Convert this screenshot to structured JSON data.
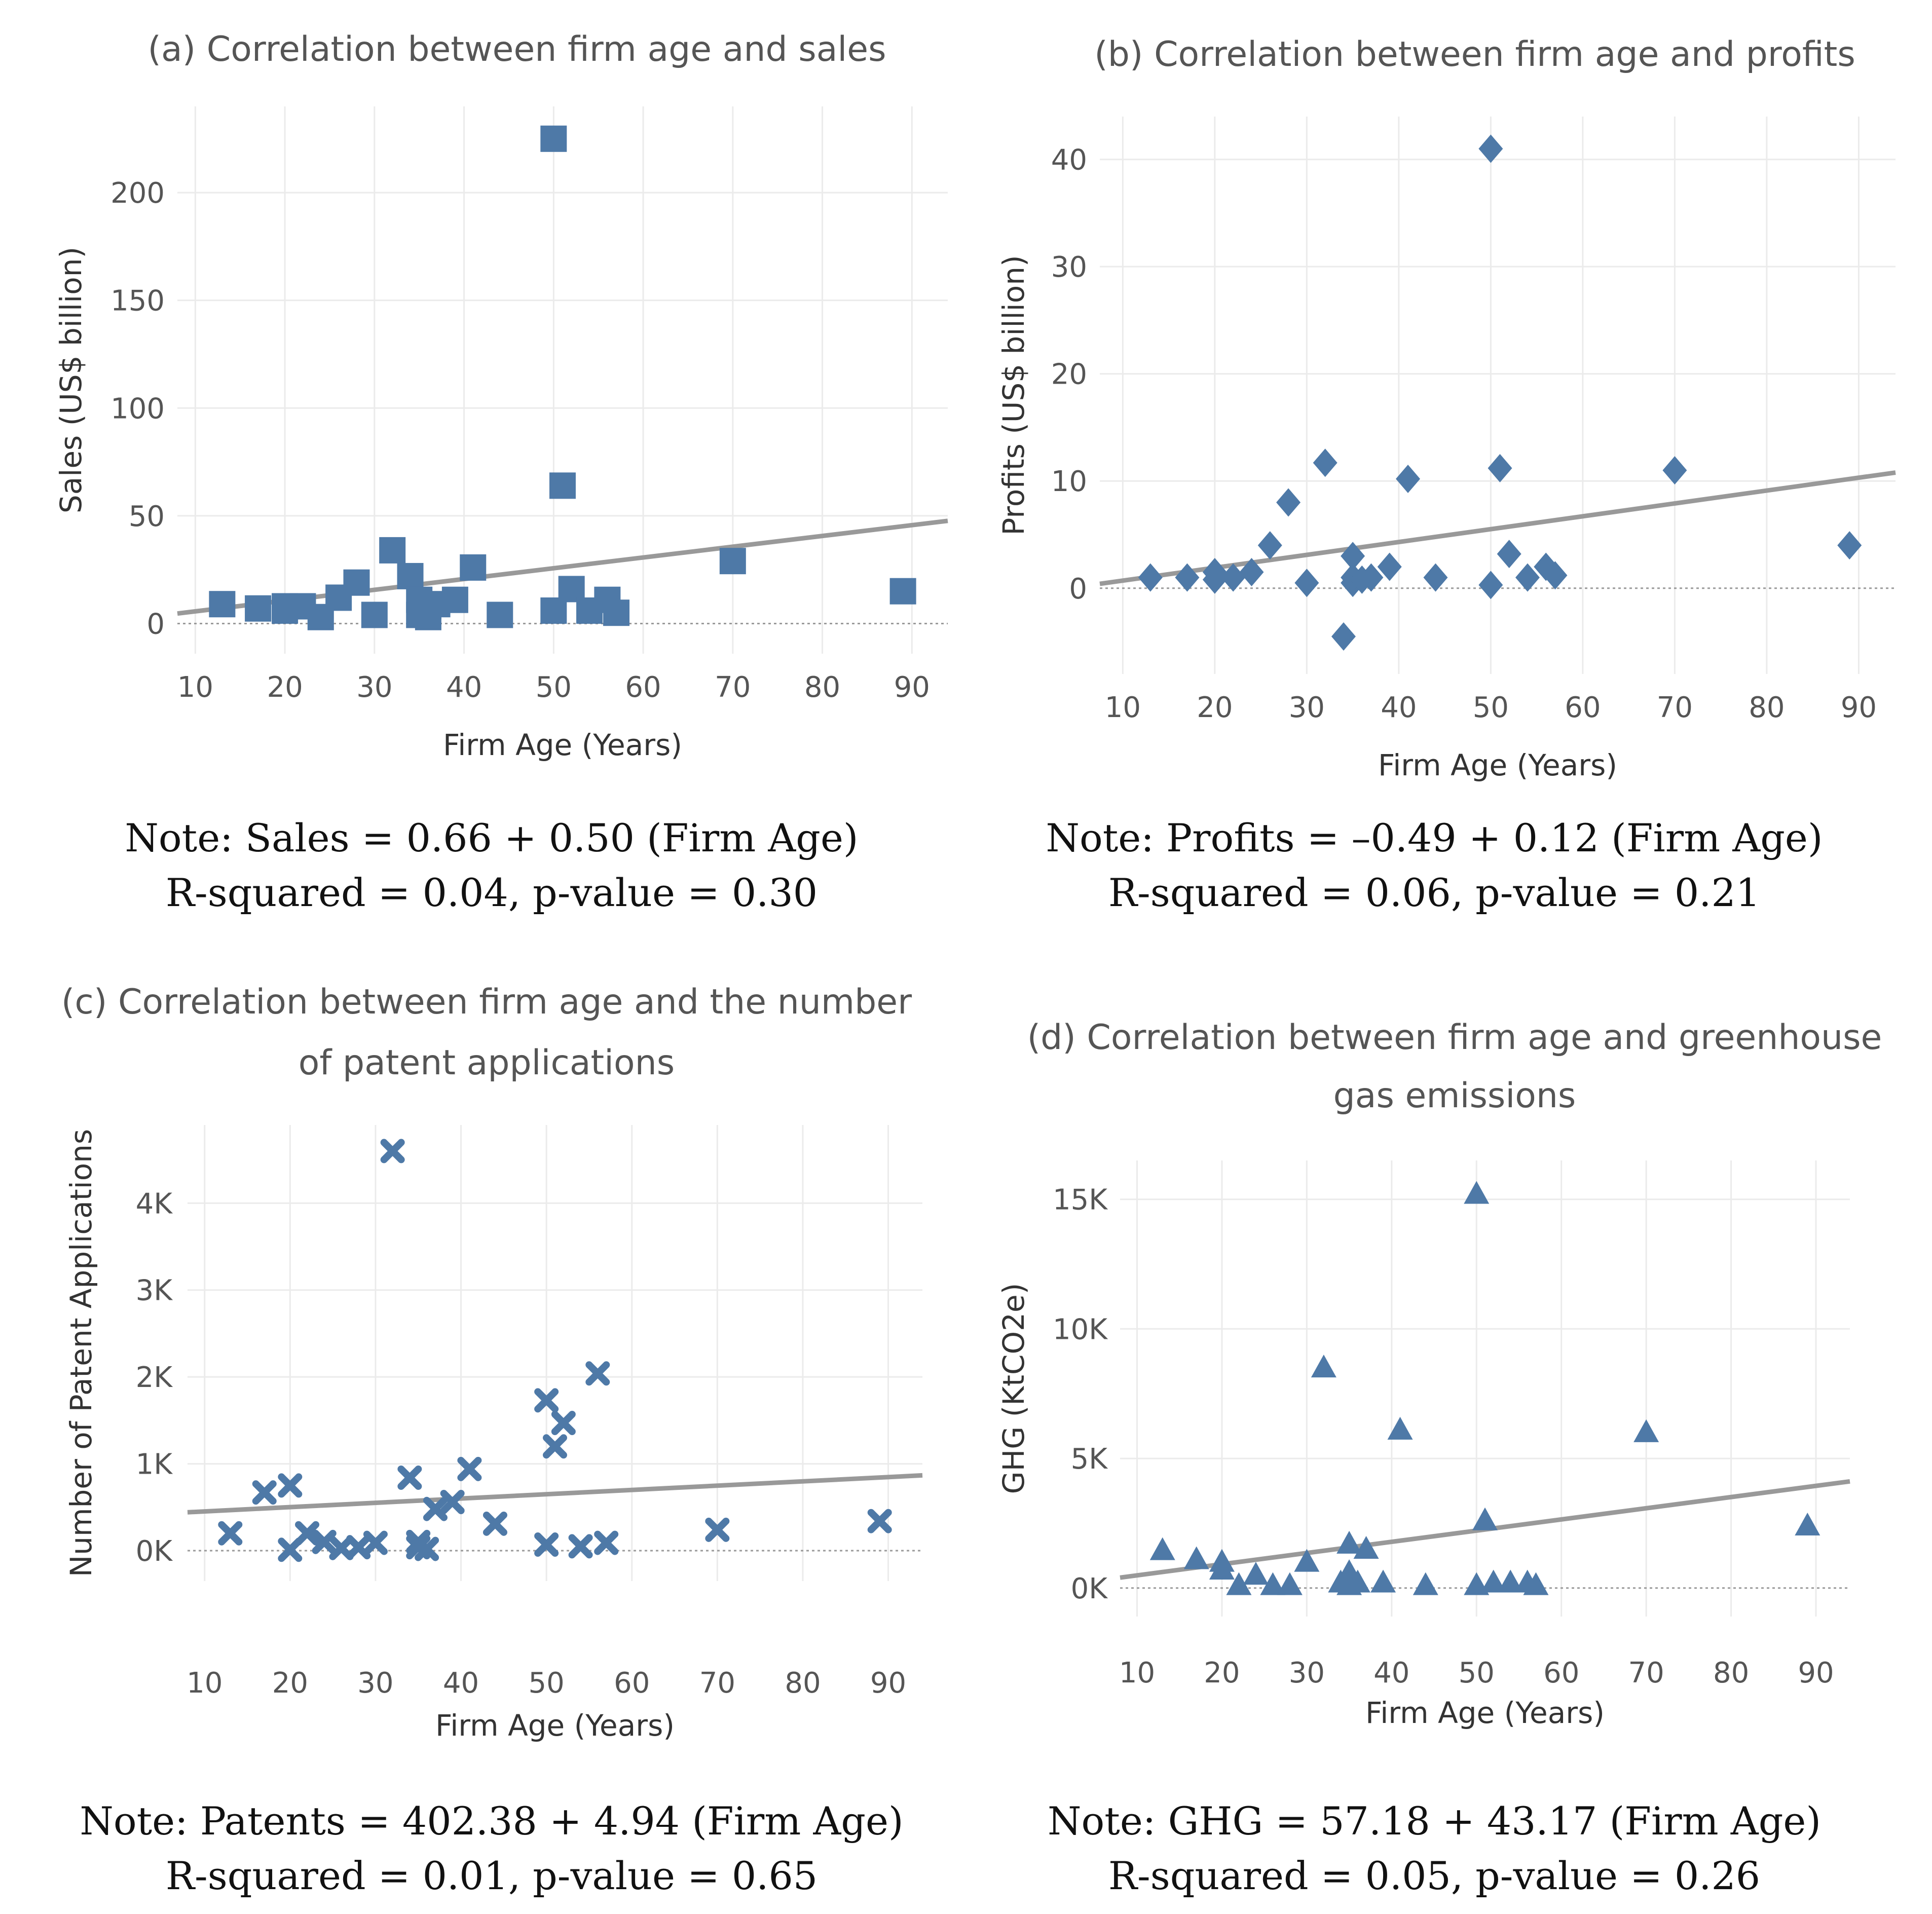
{
  "panels": [
    {
      "key": "a",
      "title_lines": [
        "(a) Correlation between firm age and sales"
      ],
      "note_lines": [
        "Note: Sales = 0.66 + 0.50 (Firm Age)",
        "R-squared = 0.04, p-value = 0.30"
      ]
    },
    {
      "key": "b",
      "title_lines": [
        "(b) Correlation between firm age and profits"
      ],
      "note_lines": [
        "Note: Profits = –0.49 + 0.12 (Firm Age)",
        "R-squared = 0.06, p-value = 0.21"
      ]
    },
    {
      "key": "c",
      "title_lines": [
        "(c) Correlation between firm age and the number",
        "of patent applications"
      ],
      "note_lines": [
        "Note: Patents = 402.38 + 4.94 (Firm Age)",
        "R-squared = 0.01, p-value = 0.65"
      ]
    },
    {
      "key": "d",
      "title_lines": [
        "(d) Correlation between firm age and greenhouse",
        "gas emissions"
      ],
      "note_lines": [
        "Note: GHG = 57.18 + 43.17 (Firm Age)",
        "R-squared = 0.05, p-value = 0.26"
      ]
    }
  ],
  "chart_data": [
    {
      "type": "scatter",
      "title": "(a) Correlation between firm age and sales",
      "xlabel": "Firm Age (Years)",
      "ylabel": "Sales (US$ billion)",
      "marker": "square",
      "color": "#4e79a7",
      "xlim": [
        8,
        94
      ],
      "ylim": [
        -14,
        240
      ],
      "xticks": [
        10,
        20,
        30,
        40,
        50,
        60,
        70,
        80,
        90
      ],
      "xtick_labels": [
        "10",
        "20",
        "30",
        "40",
        "50",
        "60",
        "70",
        "80",
        "90"
      ],
      "yticks": [
        0,
        50,
        100,
        150,
        200
      ],
      "ytick_labels": [
        "0",
        "50",
        "100",
        "150",
        "200"
      ],
      "trend": {
        "intercept": 0.66,
        "slope": 0.5
      },
      "x": [
        13,
        17,
        20,
        20,
        22,
        24,
        26,
        28,
        30,
        32,
        34,
        35,
        35,
        36,
        36,
        37,
        39,
        41,
        44,
        50,
        50,
        51,
        52,
        54,
        56,
        57,
        70,
        89
      ],
      "y": [
        9,
        7,
        8,
        6,
        8,
        3,
        12,
        19,
        4,
        34,
        22,
        11,
        4,
        8,
        3,
        9,
        11,
        26,
        4,
        225,
        6,
        64,
        16,
        6,
        11,
        5,
        29,
        15
      ]
    },
    {
      "type": "scatter",
      "title": "(b) Correlation between firm age and profits",
      "xlabel": "Firm Age (Years)",
      "ylabel": "Profits (US$ billion)",
      "marker": "diamond",
      "color": "#4e79a7",
      "xlim": [
        7.5,
        94
      ],
      "ylim": [
        -8,
        44
      ],
      "xticks": [
        10,
        20,
        30,
        40,
        50,
        60,
        70,
        80,
        90
      ],
      "xtick_labels": [
        "10",
        "20",
        "30",
        "40",
        "50",
        "60",
        "70",
        "80",
        "90"
      ],
      "yticks": [
        0,
        10,
        20,
        30,
        40
      ],
      "ytick_labels": [
        "0",
        "10",
        "20",
        "30",
        "40"
      ],
      "trend": {
        "intercept": -0.49,
        "slope": 0.12
      },
      "x": [
        13,
        17,
        20,
        20,
        22,
        24,
        26,
        28,
        30,
        32,
        34,
        35,
        35,
        35,
        36,
        37,
        39,
        41,
        44,
        50,
        50,
        51,
        52,
        54,
        56,
        57,
        70,
        89
      ],
      "y": [
        1,
        1,
        1.5,
        0.8,
        1,
        1.5,
        4,
        8,
        0.5,
        11.7,
        -4.5,
        3,
        0.5,
        1,
        0.8,
        1,
        2,
        10.2,
        1,
        41,
        0.3,
        11.2,
        3.2,
        1,
        2,
        1.2,
        11,
        4
      ]
    },
    {
      "type": "scatter",
      "title": "(c) Correlation between firm age and the number of patent applications",
      "xlabel": "Firm Age (Years)",
      "ylabel": "Number of Patent Applications",
      "marker": "x",
      "color": "#4e79a7",
      "xlim": [
        8,
        94
      ],
      "ylim": [
        -350,
        4900
      ],
      "xticks": [
        10,
        20,
        30,
        40,
        50,
        60,
        70,
        80,
        90
      ],
      "xtick_labels": [
        "10",
        "20",
        "30",
        "40",
        "50",
        "60",
        "70",
        "80",
        "90"
      ],
      "yticks": [
        0,
        1000,
        2000,
        3000,
        4000
      ],
      "ytick_labels": [
        "0K",
        "1K",
        "2K",
        "3K",
        "4K"
      ],
      "trend": {
        "intercept": 402.38,
        "slope": 4.94
      },
      "x": [
        13,
        17,
        20,
        20,
        22,
        24,
        26,
        28,
        30,
        32,
        34,
        35,
        35,
        36,
        37,
        39,
        41,
        44,
        50,
        50,
        51,
        52,
        54,
        56,
        57,
        70,
        89
      ],
      "y": [
        200,
        670,
        750,
        10,
        200,
        100,
        30,
        40,
        90,
        4600,
        840,
        100,
        40,
        20,
        480,
        560,
        940,
        310,
        1730,
        70,
        1200,
        1470,
        50,
        2040,
        90,
        240,
        340
      ]
    },
    {
      "type": "scatter",
      "title": "(d) Correlation between firm age and greenhouse gas emissions",
      "xlabel": "Firm Age (Years)",
      "ylabel": "GHG (KtCO2e)",
      "marker": "triangle",
      "color": "#4e79a7",
      "xlim": [
        8,
        94
      ],
      "ylim": [
        -1100,
        16500
      ],
      "xticks": [
        10,
        20,
        30,
        40,
        50,
        60,
        70,
        80,
        90
      ],
      "xtick_labels": [
        "10",
        "20",
        "30",
        "40",
        "50",
        "60",
        "70",
        "80",
        "90"
      ],
      "yticks": [
        0,
        5000,
        10000,
        15000
      ],
      "ytick_labels": [
        "0K",
        "5K",
        "10K",
        "15K"
      ],
      "trend": {
        "intercept": 57.18,
        "slope": 43.17
      },
      "x": [
        13,
        17,
        20,
        20,
        22,
        24,
        26,
        28,
        30,
        32,
        34,
        35,
        35,
        35,
        36,
        37,
        39,
        41,
        44,
        50,
        50,
        51,
        52,
        54,
        56,
        57,
        70,
        89
      ],
      "y": [
        1450,
        1100,
        1000,
        700,
        100,
        500,
        100,
        100,
        1000,
        8500,
        200,
        1700,
        600,
        100,
        200,
        1500,
        200,
        6100,
        100,
        15200,
        100,
        2600,
        200,
        200,
        200,
        100,
        6000,
        2400
      ]
    }
  ]
}
